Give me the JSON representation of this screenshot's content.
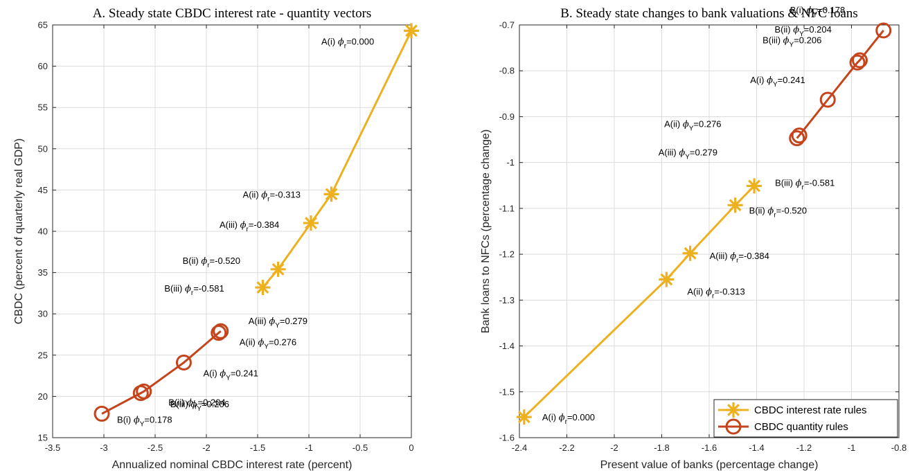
{
  "colors": {
    "rate_rules": "#EDB120",
    "quantity_rules": "#C4451C",
    "grid": "#dcdcdc",
    "axis": "#262626"
  },
  "chart_data": [
    {
      "type": "line",
      "title": "A. Steady state CBDC interest rate - quantity vectors",
      "xlabel": "Annualized nominal CBDC interest rate (percent)",
      "ylabel": "CBDC (percent of quarterly real GDP)",
      "xlim": [
        -3.5,
        0
      ],
      "ylim": [
        15,
        65
      ],
      "xticks": [
        -3.5,
        -3,
        -2.5,
        -2,
        -1.5,
        -1,
        -0.5,
        0
      ],
      "yticks": [
        15,
        20,
        25,
        30,
        35,
        40,
        45,
        50,
        55,
        60,
        65
      ],
      "xtick_labels": [
        "-3.5",
        "-3",
        "-2.5",
        "-2",
        "-1.5",
        "-1",
        "-0.5",
        "0"
      ],
      "ytick_labels": [
        "15",
        "20",
        "25",
        "30",
        "35",
        "40",
        "45",
        "50",
        "55",
        "60",
        "65"
      ],
      "grid": true,
      "series": [
        {
          "key": "rate",
          "marker": "asterisk",
          "points": [
            {
              "x": 0.0,
              "y": 64.3,
              "label": "A(i)",
              "sub": "r",
              "value": "=0.000"
            },
            {
              "x": -0.78,
              "y": 44.5,
              "label": "A(ii)",
              "sub": "r",
              "value": "=-0.313"
            },
            {
              "x": -0.98,
              "y": 41.0,
              "label": "A(iii)",
              "sub": "r",
              "value": "=-0.384"
            },
            {
              "x": -1.3,
              "y": 35.4,
              "label": "B(ii)",
              "sub": "r",
              "value": "=-0.520"
            },
            {
              "x": -1.45,
              "y": 33.2,
              "label": "B(iii)",
              "sub": "r",
              "value": "=-0.581"
            }
          ]
        },
        {
          "key": "quantity",
          "marker": "circle",
          "points": [
            {
              "x": -3.02,
              "y": 17.9,
              "label": "B(i)",
              "sub": "Y",
              "value": "=0.178"
            },
            {
              "x": -2.64,
              "y": 20.4,
              "label": "B(ii)",
              "sub": "Y",
              "value": "=0.204"
            },
            {
              "x": -2.61,
              "y": 20.6,
              "label": "B(iii)",
              "sub": "Y",
              "value": "=0.206"
            },
            {
              "x": -2.22,
              "y": 24.1,
              "label": "A(i)",
              "sub": "Y",
              "value": "=0.241"
            },
            {
              "x": -1.88,
              "y": 27.7,
              "label": "A(ii)",
              "sub": "Y",
              "value": "=0.276"
            },
            {
              "x": -1.86,
              "y": 27.9,
              "label": "A(iii)",
              "sub": "Y",
              "value": "=0.279"
            }
          ]
        }
      ]
    },
    {
      "type": "line",
      "title": "B. Steady state changes to bank valuations & NFC loans",
      "xlabel": "Present value of banks (percentage change)",
      "ylabel": "Bank loans to NFCs (percentage change)",
      "xlim": [
        -2.4,
        -0.8
      ],
      "ylim": [
        -1.6,
        -0.7
      ],
      "xticks": [
        -2.4,
        -2.2,
        -2,
        -1.8,
        -1.6,
        -1.4,
        -1.2,
        -1,
        -0.8
      ],
      "yticks": [
        -1.6,
        -1.5,
        -1.4,
        -1.3,
        -1.2,
        -1.1,
        -1,
        -0.9,
        -0.8,
        -0.7
      ],
      "xtick_labels": [
        "-2.4",
        "-2.2",
        "-2",
        "-1.8",
        "-1.6",
        "-1.4",
        "-1.2",
        "-1",
        "-0.8"
      ],
      "ytick_labels": [
        "-1.6",
        "-1.5",
        "-1.4",
        "-1.3",
        "-1.2",
        "-1.1",
        "-1",
        "-0.9",
        "-0.8",
        "-0.7"
      ],
      "grid": true,
      "legend": {
        "placement": "bottom-right",
        "entries": [
          {
            "key": "rate",
            "label": "CBDC interest rate rules"
          },
          {
            "key": "quantity",
            "label": "CBDC quantity rules"
          }
        ]
      },
      "series": [
        {
          "key": "rate",
          "marker": "asterisk",
          "points": [
            {
              "x": -2.38,
              "y": -1.555,
              "label": "A(i)",
              "sub": "r",
              "value": "=0.000"
            },
            {
              "x": -1.78,
              "y": -1.255,
              "label": "A(ii)",
              "sub": "r",
              "value": "=-0.313"
            },
            {
              "x": -1.68,
              "y": -1.198,
              "label": "A(iii)",
              "sub": "r",
              "value": "=-0.384"
            },
            {
              "x": -1.49,
              "y": -1.093,
              "label": "B(ii)",
              "sub": "r",
              "value": "=-0.520"
            },
            {
              "x": -1.41,
              "y": -1.051,
              "label": "B(iii)",
              "sub": "r",
              "value": "=-0.581"
            }
          ]
        },
        {
          "key": "quantity",
          "marker": "circle",
          "points": [
            {
              "x": -1.23,
              "y": -0.947,
              "label": "A(iii)",
              "sub": "Y",
              "value": "=0.279"
            },
            {
              "x": -1.22,
              "y": -0.941,
              "label": "A(ii)",
              "sub": "Y",
              "value": "=0.276"
            },
            {
              "x": -1.1,
              "y": -0.863,
              "label": "A(i)",
              "sub": "Y",
              "value": "=0.241"
            },
            {
              "x": -0.975,
              "y": -0.782,
              "label": "B(iii)",
              "sub": "Y",
              "value": "=0.206"
            },
            {
              "x": -0.965,
              "y": -0.777,
              "label": "B(ii)",
              "sub": "Y",
              "value": "=0.204"
            },
            {
              "x": -0.865,
              "y": -0.712,
              "label": "B(i)",
              "sub": "Y",
              "value": "=0.178"
            }
          ]
        }
      ]
    }
  ]
}
